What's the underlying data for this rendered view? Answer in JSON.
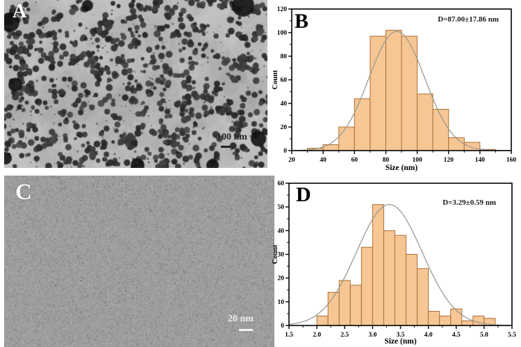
{
  "panels": {
    "a": {
      "label": "A",
      "scale_text": "100 nm"
    },
    "b": {
      "label": "B",
      "annotation": "D=87.00±17.86 nm"
    },
    "c": {
      "label": "C",
      "scale_text": "20 nm"
    },
    "d": {
      "label": "D",
      "annotation": "D=3.29±0.59 nm"
    }
  },
  "colors": {
    "bar_fill": "#f6c695",
    "bar_stroke": "#ab6f33",
    "curve": "#9a9a8c",
    "axis": "#000000",
    "tem_a_bg": "#c1c1c1",
    "tem_c_bg": "#9e9e9e"
  },
  "chart_data": [
    {
      "id": "b",
      "type": "bar",
      "title": "",
      "xlabel": "Size (nm)",
      "ylabel": "Count",
      "xlim": [
        20,
        160
      ],
      "ylim": [
        0,
        120
      ],
      "xticks": [
        20,
        40,
        60,
        80,
        100,
        120,
        140,
        160
      ],
      "yticks": [
        0,
        20,
        40,
        60,
        80,
        100,
        120
      ],
      "x_minor_step": 10,
      "y_minor_step": 10,
      "x_decimals": 0,
      "bin_start": 30,
      "bin_width": 10,
      "values": [
        2,
        5,
        20,
        44,
        97,
        102,
        97,
        48,
        35,
        11,
        7,
        1
      ],
      "annotation": "D=87.00±17.86 nm",
      "fit": {
        "type": "gaussian",
        "mu": 87.0,
        "sigma": 17.86,
        "amplitude": 101
      },
      "legend": null,
      "grid": false
    },
    {
      "id": "d",
      "type": "bar",
      "title": "",
      "xlabel": "Size (nm)",
      "ylabel": "Count",
      "xlim": [
        1.5,
        5.5
      ],
      "ylim": [
        0,
        60
      ],
      "xticks": [
        1.5,
        2.0,
        2.5,
        3.0,
        3.5,
        4.0,
        4.5,
        5.0,
        5.5
      ],
      "yticks": [
        0,
        10,
        20,
        30,
        40,
        50,
        60
      ],
      "x_minor_step": 0.25,
      "y_minor_step": 5,
      "x_decimals": 1,
      "bin_start": 2.0,
      "bin_width": 0.2,
      "values": [
        4,
        14,
        19,
        17,
        33,
        51,
        40,
        38,
        30,
        24,
        6,
        4,
        7,
        2,
        4,
        3
      ],
      "annotation": "D=3.29±0.59 nm",
      "fit": {
        "type": "gaussian",
        "mu": 3.3,
        "sigma": 0.59,
        "amplitude": 51
      },
      "legend": null,
      "grid": false
    }
  ]
}
